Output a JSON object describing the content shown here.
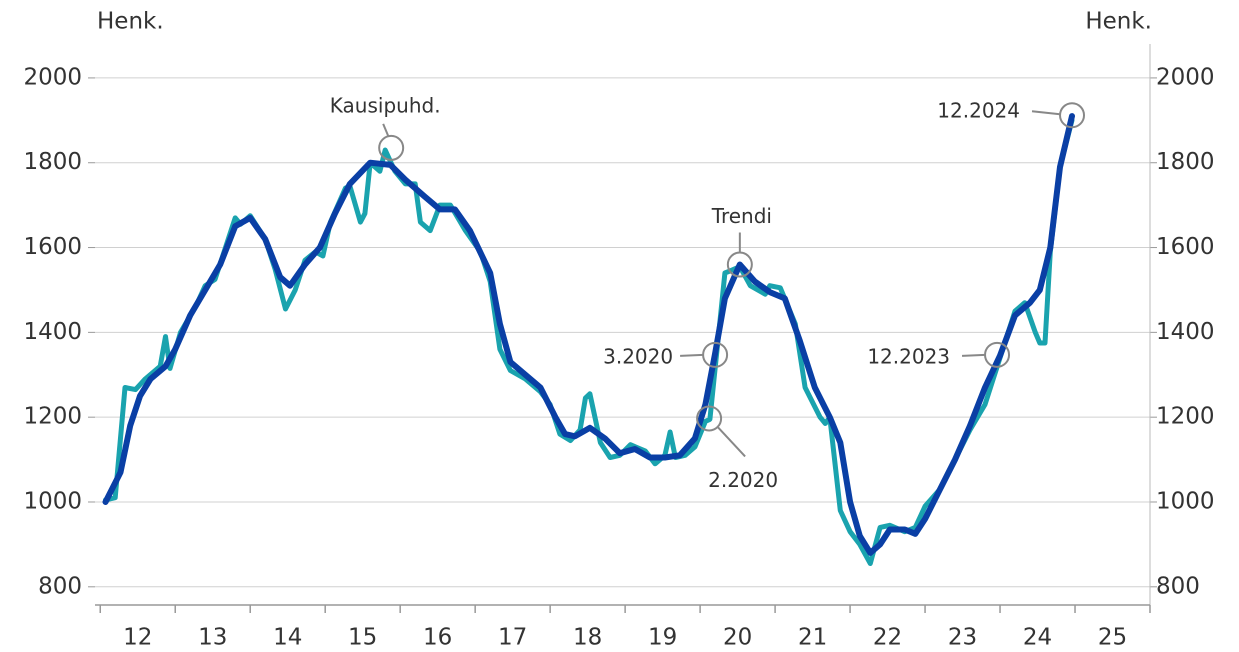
{
  "chart_data": {
    "type": "line",
    "ylabel": "Henk.",
    "y2label": "Henk.",
    "xlim": [
      11.93,
      26.0
    ],
    "xticks": [
      {
        "value": 12,
        "label": "12"
      },
      {
        "value": 13,
        "label": "13"
      },
      {
        "value": 14,
        "label": "14"
      },
      {
        "value": 15,
        "label": "15"
      },
      {
        "value": 16,
        "label": "16"
      },
      {
        "value": 17,
        "label": "17"
      },
      {
        "value": 18,
        "label": "18"
      },
      {
        "value": 19,
        "label": "19"
      },
      {
        "value": 20,
        "label": "20"
      },
      {
        "value": 21,
        "label": "21"
      },
      {
        "value": 22,
        "label": "22"
      },
      {
        "value": 23,
        "label": "23"
      },
      {
        "value": 24,
        "label": "24"
      },
      {
        "value": 25,
        "label": "25"
      }
    ],
    "ylim": [
      750,
      2080
    ],
    "yticks": [
      800,
      1000,
      1200,
      1400,
      1600,
      1800,
      2000
    ],
    "y2lim": [
      750,
      2080
    ],
    "y2ticks": [
      800,
      1000,
      1200,
      1400,
      1600,
      1800,
      2000
    ],
    "grid": true,
    "series": [
      {
        "color": "#1aa3ae",
        "x": [
          12.07,
          12.2,
          12.33,
          12.47,
          12.6,
          12.8,
          12.87,
          12.93,
          13.07,
          13.27,
          13.4,
          13.53,
          13.67,
          13.8,
          13.87,
          14.0,
          14.2,
          14.33,
          14.47,
          14.6,
          14.73,
          14.87,
          14.97,
          15.07,
          15.27,
          15.33,
          15.47,
          15.53,
          15.6,
          15.73,
          15.8,
          15.93,
          16.07,
          16.2,
          16.27,
          16.4,
          16.53,
          16.67,
          16.87,
          17.07,
          17.2,
          17.33,
          17.47,
          17.67,
          17.87,
          18.0,
          18.13,
          18.27,
          18.4,
          18.47,
          18.53,
          18.67,
          18.8,
          18.93,
          19.07,
          19.27,
          19.4,
          19.53,
          19.6,
          19.67,
          19.8,
          19.93,
          20.07,
          20.13,
          20.33,
          20.4,
          20.53,
          20.67,
          20.87,
          20.93,
          21.07,
          21.27,
          21.4,
          21.6,
          21.67,
          21.73,
          21.87,
          22.0,
          22.13,
          22.27,
          22.4,
          22.53,
          22.73,
          22.87,
          23.0,
          23.2,
          23.4,
          23.6,
          23.8,
          24.0,
          24.2,
          24.33,
          24.47,
          24.53,
          24.6,
          24.67,
          24.8,
          24.96
        ],
        "values": [
          1005,
          1010,
          1270,
          1265,
          1290,
          1320,
          1390,
          1315,
          1400,
          1460,
          1510,
          1525,
          1600,
          1670,
          1655,
          1675,
          1620,
          1550,
          1455,
          1500,
          1570,
          1590,
          1580,
          1660,
          1740,
          1745,
          1660,
          1680,
          1800,
          1780,
          1830,
          1780,
          1750,
          1750,
          1660,
          1640,
          1700,
          1700,
          1640,
          1590,
          1520,
          1360,
          1310,
          1290,
          1260,
          1230,
          1160,
          1145,
          1170,
          1245,
          1255,
          1140,
          1105,
          1110,
          1135,
          1120,
          1090,
          1110,
          1165,
          1105,
          1110,
          1130,
          1190,
          1195,
          1540,
          1545,
          1555,
          1510,
          1490,
          1510,
          1505,
          1420,
          1270,
          1200,
          1185,
          1200,
          980,
          930,
          900,
          855,
          940,
          945,
          930,
          940,
          990,
          1030,
          1100,
          1170,
          1230,
          1340,
          1450,
          1470,
          1400,
          1375,
          1375,
          1590,
          1790,
          1900
        ]
      },
      {
        "color": "#0a3fa5",
        "x": [
          12.07,
          12.27,
          12.4,
          12.53,
          12.67,
          12.87,
          13.0,
          13.2,
          13.4,
          13.6,
          13.8,
          14.0,
          14.2,
          14.4,
          14.53,
          14.73,
          14.93,
          15.13,
          15.33,
          15.6,
          15.87,
          16.07,
          16.33,
          16.53,
          16.73,
          16.93,
          17.2,
          17.33,
          17.47,
          17.67,
          17.87,
          18.07,
          18.2,
          18.33,
          18.53,
          18.73,
          18.93,
          19.13,
          19.33,
          19.53,
          19.73,
          19.93,
          20.07,
          20.2,
          20.33,
          20.53,
          20.73,
          20.93,
          21.13,
          21.33,
          21.53,
          21.73,
          21.87,
          22.0,
          22.13,
          22.27,
          22.4,
          22.53,
          22.73,
          22.87,
          23.0,
          23.2,
          23.4,
          23.6,
          23.8,
          24.0,
          24.2,
          24.4,
          24.53,
          24.67,
          24.8,
          24.96
        ],
        "values": [
          1000,
          1070,
          1180,
          1250,
          1290,
          1320,
          1360,
          1440,
          1500,
          1560,
          1650,
          1670,
          1620,
          1530,
          1510,
          1560,
          1600,
          1680,
          1750,
          1800,
          1795,
          1760,
          1720,
          1690,
          1690,
          1640,
          1540,
          1420,
          1330,
          1300,
          1270,
          1200,
          1160,
          1155,
          1175,
          1150,
          1115,
          1125,
          1105,
          1105,
          1110,
          1150,
          1230,
          1350,
          1480,
          1560,
          1520,
          1495,
          1480,
          1380,
          1270,
          1200,
          1140,
          1000,
          920,
          880,
          900,
          935,
          935,
          925,
          960,
          1030,
          1100,
          1180,
          1270,
          1345,
          1440,
          1470,
          1500,
          1600,
          1790,
          1910
        ]
      }
    ],
    "annotations": [
      {
        "text": "Kausipuhd.",
        "x": 15.88,
        "y": 1835
      },
      {
        "text": "Trendi",
        "x": 20.53,
        "y": 1560
      },
      {
        "text": "3.2020",
        "x": 20.2,
        "y": 1347
      },
      {
        "text": "2.2020",
        "x": 20.12,
        "y": 1197
      },
      {
        "text": "12.2023",
        "x": 23.96,
        "y": 1347
      },
      {
        "text": "12.2024",
        "x": 24.96,
        "y": 1912
      }
    ]
  }
}
